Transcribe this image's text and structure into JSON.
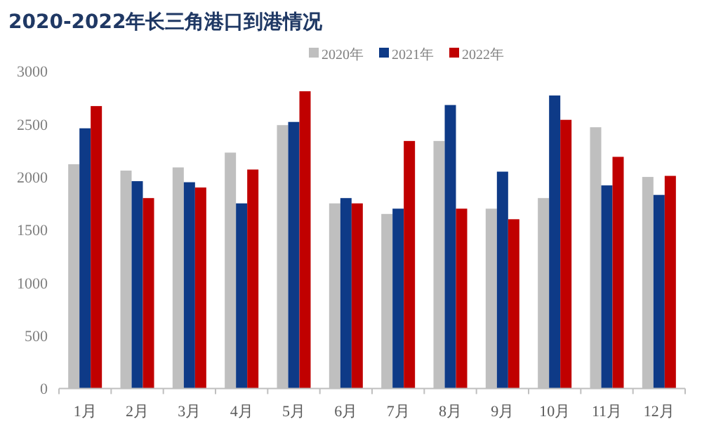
{
  "chart_data": {
    "type": "bar",
    "title": "2020-2022年长三角港口到港情况",
    "categories": [
      "1月",
      "2月",
      "3月",
      "4月",
      "5月",
      "6月",
      "7月",
      "8月",
      "9月",
      "10月",
      "11月",
      "12月"
    ],
    "series": [
      {
        "name": "2020年",
        "color": "#bfbfbf",
        "values": [
          2120,
          2060,
          2090,
          2230,
          2490,
          1750,
          1650,
          2340,
          1700,
          1800,
          2470,
          2000
        ]
      },
      {
        "name": "2021年",
        "color": "#0e3a87",
        "values": [
          2460,
          1960,
          1950,
          1750,
          2520,
          1800,
          1700,
          2680,
          2050,
          2770,
          1920,
          1830
        ]
      },
      {
        "name": "2022年",
        "color": "#c00000",
        "values": [
          2670,
          1800,
          1900,
          2070,
          2810,
          1750,
          2340,
          1700,
          1600,
          2540,
          2190,
          2010
        ]
      }
    ],
    "ylim": [
      0,
      3000
    ],
    "yticks": [
      0,
      500,
      1000,
      1500,
      2000,
      2500,
      3000
    ],
    "legend": "top",
    "grid": false
  }
}
